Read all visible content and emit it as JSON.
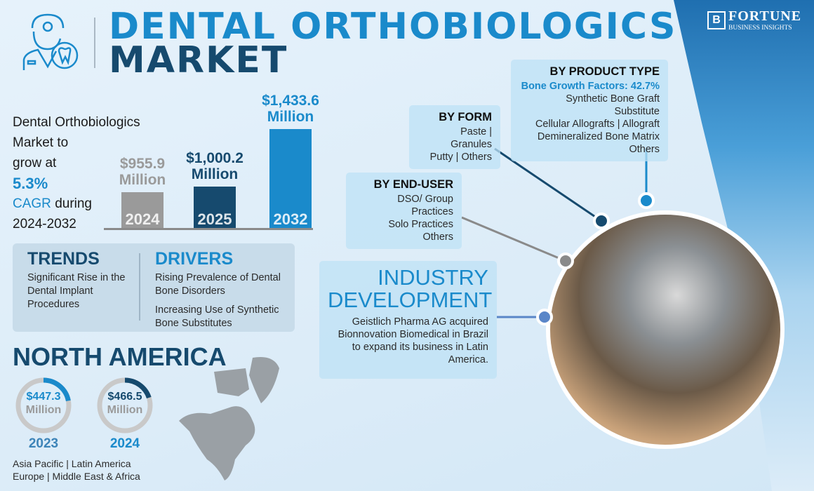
{
  "header": {
    "title_line1": "DENTAL ORTHOBIOLOGICS",
    "title_line2": "MARKET",
    "logo_text": "FORTUNE",
    "logo_subtext": "BUSINESS INSIGHTS"
  },
  "intro": {
    "line1": "Dental Orthobiologics",
    "line2": "Market to",
    "line3": "grow at",
    "cagr": "5.3%",
    "cagr_label": "CAGR",
    "during": "during",
    "period": "2024-2032"
  },
  "chart_data": {
    "type": "bar",
    "categories": [
      "2024",
      "2025",
      "2032"
    ],
    "values": [
      955.9,
      1000.2,
      1433.6
    ],
    "labels": [
      "$955.9 Million",
      "$1,000.2 Million",
      "$1,433.6 Million"
    ],
    "colors": [
      "#9a9a9a",
      "#164a6e",
      "#1a8acb"
    ],
    "unit": "Million USD"
  },
  "trends": {
    "title": "TRENDS",
    "items": [
      "Significant Rise in the Dental Implant Procedures"
    ]
  },
  "drivers": {
    "title": "DRIVERS",
    "items": [
      "Rising Prevalence of Dental Bone Disorders",
      "Increasing Use of Synthetic Bone Substitutes"
    ]
  },
  "region": {
    "title": "NORTH AMERICA",
    "donuts": [
      {
        "value": "$447.3",
        "unit": "Million",
        "year": "2023",
        "color": "#1a8acb"
      },
      {
        "value": "$466.5",
        "unit": "Million",
        "year": "2024",
        "color": "#164a6e"
      }
    ],
    "others_line1": "Asia Pacific  |  Latin America",
    "others_line2": "Europe  |  Middle East & Africa"
  },
  "product_type": {
    "title": "BY PRODUCT TYPE",
    "highlight": "Bone Growth Factors: 42.7%",
    "lines": [
      "Synthetic Bone Graft Substitute",
      "Cellular Allografts  |  Allograft",
      "Demineralized Bone Matrix",
      "Others"
    ]
  },
  "form": {
    "title": "BY FORM",
    "lines": [
      "Paste  |  Granules",
      "Putty  |  Others"
    ]
  },
  "end_user": {
    "title": "BY END-USER",
    "lines": [
      "DSO/ Group Practices",
      "Solo Practices",
      "Others"
    ]
  },
  "industry": {
    "title_line1": "INDUSTRY",
    "title_line2": "DEVELOPMENT",
    "text": "Geistlich Pharma AG acquired Bionnovation Biomedical in Brazil to expand its business in Latin America."
  }
}
